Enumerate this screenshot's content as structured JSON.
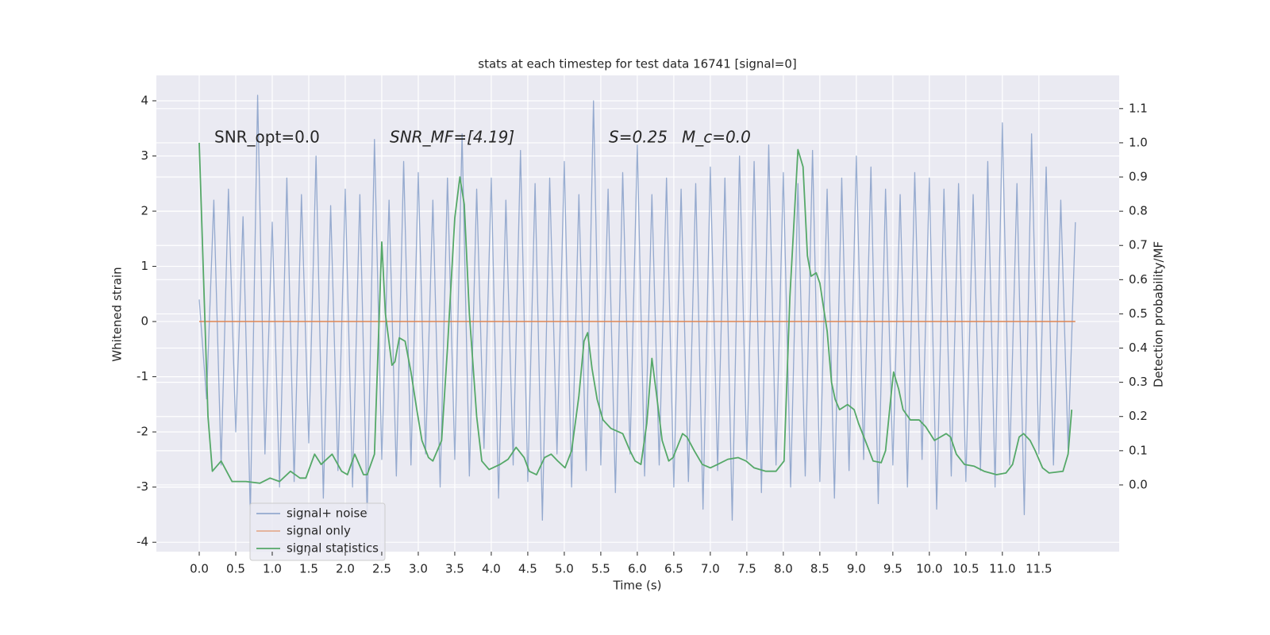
{
  "chart_data": {
    "type": "line",
    "title": "stats at each timestep for test data 16741 [signal=0]",
    "xlabel": "Time (s)",
    "ylabel": "Whitened strain",
    "y2label": "Detection probability/MF",
    "annotations": [
      "SNR_opt=0.0",
      "SNR_MF=[4.19]",
      "S=0.25",
      "M_c=0.0"
    ],
    "xlim": [
      -0.587,
      12.6
    ],
    "ylim": [
      -4.17,
      4.46
    ],
    "y2lim": [
      -0.195,
      1.197
    ],
    "xticks": [
      {
        "value": 0,
        "label": "0.0"
      },
      {
        "value": 0.5,
        "label": "0.5"
      },
      {
        "value": 1,
        "label": "1.0"
      },
      {
        "value": 1.5,
        "label": "1.5"
      },
      {
        "value": 2,
        "label": "2.0"
      },
      {
        "value": 2.5,
        "label": "2.5"
      },
      {
        "value": 3,
        "label": "3.0"
      },
      {
        "value": 3.5,
        "label": "3.5"
      },
      {
        "value": 4,
        "label": "4.0"
      },
      {
        "value": 4.5,
        "label": "4.5"
      },
      {
        "value": 5,
        "label": "5.0"
      },
      {
        "value": 5.5,
        "label": "5.5"
      },
      {
        "value": 6,
        "label": "6.0"
      },
      {
        "value": 6.5,
        "label": "6.5"
      },
      {
        "value": 7,
        "label": "7.0"
      },
      {
        "value": 7.5,
        "label": "7.5"
      },
      {
        "value": 8,
        "label": "8.0"
      },
      {
        "value": 8.5,
        "label": "8.5"
      },
      {
        "value": 9,
        "label": "9.0"
      },
      {
        "value": 9.5,
        "label": "9.5"
      },
      {
        "value": 10,
        "label": "10.0"
      },
      {
        "value": 10.5,
        "label": "10.5"
      },
      {
        "value": 11,
        "label": "11.0"
      },
      {
        "value": 11.5,
        "label": "11.5"
      }
    ],
    "yticks": [
      -4,
      -3,
      -2,
      -1,
      0,
      1,
      2,
      3,
      4
    ],
    "y2ticks": [
      {
        "value": 0,
        "label": "0.0"
      },
      {
        "value": 0.1,
        "label": "0.1"
      },
      {
        "value": 0.2,
        "label": "0.2"
      },
      {
        "value": 0.3,
        "label": "0.3"
      },
      {
        "value": 0.4,
        "label": "0.4"
      },
      {
        "value": 0.5,
        "label": "0.5"
      },
      {
        "value": 0.6,
        "label": "0.6"
      },
      {
        "value": 0.7,
        "label": "0.7"
      },
      {
        "value": 0.8,
        "label": "0.8"
      },
      {
        "value": 0.9,
        "label": "0.9"
      },
      {
        "value": 1,
        "label": "1.0"
      },
      {
        "value": 1.1,
        "label": "1.1"
      }
    ],
    "grid": true,
    "legend": "lower left",
    "series": [
      {
        "name": "signal+ noise",
        "color": "#4c72b0",
        "x": [
          0,
          0.1,
          0.2,
          0.3,
          0.4,
          0.5,
          0.6,
          0.7,
          0.8,
          0.9,
          1,
          1.1,
          1.2,
          1.3,
          1.4,
          1.5,
          1.6,
          1.7,
          1.8,
          1.9,
          2,
          2.1,
          2.2,
          2.3,
          2.4,
          2.5,
          2.6,
          2.7,
          2.8,
          2.9,
          3,
          3.1,
          3.2,
          3.3,
          3.4,
          3.5,
          3.6,
          3.7,
          3.8,
          3.9,
          4,
          4.1,
          4.2,
          4.3,
          4.4,
          4.5,
          4.6,
          4.7,
          4.8,
          4.9,
          5,
          5.1,
          5.2,
          5.3,
          5.4,
          5.5,
          5.6,
          5.7,
          5.8,
          5.9,
          6,
          6.1,
          6.2,
          6.3,
          6.4,
          6.5,
          6.6,
          6.7,
          6.8,
          6.9,
          7,
          7.1,
          7.2,
          7.3,
          7.4,
          7.5,
          7.6,
          7.7,
          7.8,
          7.9,
          8,
          8.1,
          8.2,
          8.3,
          8.4,
          8.5,
          8.6,
          8.7,
          8.8,
          8.9,
          9,
          9.1,
          9.2,
          9.3,
          9.4,
          9.5,
          9.6,
          9.7,
          9.8,
          9.9,
          10,
          10.1,
          10.2,
          10.3,
          10.4,
          10.5,
          10.6,
          10.7,
          10.8,
          10.9,
          11,
          11.1,
          11.2,
          11.3,
          11.4,
          11.5,
          11.6,
          11.7,
          11.8,
          11.9,
          12
        ],
        "values": [
          0.4,
          -1.4,
          2.2,
          -2.6,
          2.4,
          -2.0,
          1.9,
          -3.5,
          4.1,
          -2.4,
          1.8,
          -3.0,
          2.6,
          -2.9,
          2.3,
          -2.2,
          3.0,
          -3.2,
          2.1,
          -2.7,
          2.4,
          -3.0,
          2.3,
          -3.5,
          3.3,
          -2.5,
          2.2,
          -2.8,
          2.9,
          -2.6,
          2.7,
          -2.4,
          2.2,
          -3.0,
          2.6,
          -2.5,
          3.4,
          -2.8,
          2.4,
          -2.3,
          2.6,
          -3.2,
          2.2,
          -2.6,
          3.1,
          -2.9,
          2.5,
          -3.6,
          2.6,
          -2.4,
          2.9,
          -3.0,
          2.3,
          -2.7,
          4.0,
          -2.6,
          2.4,
          -3.1,
          2.7,
          -2.4,
          3.2,
          -2.8,
          2.3,
          -2.6,
          2.6,
          -3.0,
          2.4,
          -2.9,
          2.5,
          -3.4,
          2.8,
          -2.7,
          2.6,
          -3.6,
          3.0,
          -2.5,
          2.9,
          -3.1,
          3.2,
          -2.6,
          2.7,
          -3.0,
          2.5,
          -2.8,
          3.1,
          -2.9,
          2.4,
          -3.2,
          2.6,
          -2.7,
          3.0,
          -2.5,
          2.8,
          -3.3,
          2.4,
          -2.6,
          2.3,
          -3.0,
          2.7,
          -2.5,
          2.6,
          -3.4,
          2.4,
          -2.8,
          2.5,
          -2.9,
          2.3,
          -2.7,
          2.9,
          -3.0,
          3.6,
          -2.6,
          2.5,
          -3.5,
          3.4,
          -2.4,
          2.8,
          -2.6,
          2.2,
          -2.3,
          1.8
        ]
      },
      {
        "name": "signal only",
        "color": "#dd8452",
        "x": [
          0,
          12
        ],
        "values": [
          0,
          0
        ]
      },
      {
        "name": "signal statistics",
        "color": "#55a868",
        "axis": "y2",
        "x": [
          0,
          0.12,
          0.18,
          0.3,
          0.45,
          0.64,
          0.83,
          0.97,
          1.1,
          1.25,
          1.38,
          1.46,
          1.58,
          1.67,
          1.82,
          1.95,
          2.03,
          2.13,
          2.25,
          2.3,
          2.4,
          2.5,
          2.55,
          2.64,
          2.68,
          2.74,
          2.82,
          2.9,
          2.98,
          3.05,
          3.14,
          3.2,
          3.32,
          3.4,
          3.5,
          3.57,
          3.63,
          3.7,
          3.8,
          3.87,
          3.97,
          4.12,
          4.23,
          4.34,
          4.45,
          4.52,
          4.62,
          4.73,
          4.82,
          4.91,
          5.01,
          5.1,
          5.2,
          5.27,
          5.32,
          5.38,
          5.45,
          5.53,
          5.64,
          5.8,
          5.9,
          5.97,
          6.05,
          6.13,
          6.2,
          6.26,
          6.34,
          6.43,
          6.49,
          6.62,
          6.68,
          6.78,
          6.89,
          7,
          7.1,
          7.24,
          7.38,
          7.49,
          7.6,
          7.76,
          7.9,
          8.01,
          8.09,
          8.2,
          8.27,
          8.33,
          8.38,
          8.45,
          8.5,
          8.6,
          8.66,
          8.71,
          8.77,
          8.88,
          8.97,
          9.03,
          9.14,
          9.23,
          9.34,
          9.4,
          9.47,
          9.51,
          9.58,
          9.64,
          9.74,
          9.86,
          9.95,
          10.07,
          10.15,
          10.23,
          10.29,
          10.37,
          10.48,
          10.61,
          10.75,
          10.92,
          11.05,
          11.14,
          11.23,
          11.29,
          11.38,
          11.45,
          11.55,
          11.64,
          11.83,
          11.9,
          11.95
        ],
        "values": [
          1.0,
          0.2,
          0.04,
          0.07,
          0.01,
          0.01,
          0.005,
          0.02,
          0.01,
          0.04,
          0.02,
          0.02,
          0.09,
          0.06,
          0.09,
          0.04,
          0.03,
          0.09,
          0.03,
          0.03,
          0.09,
          0.71,
          0.5,
          0.35,
          0.36,
          0.43,
          0.42,
          0.33,
          0.22,
          0.13,
          0.08,
          0.07,
          0.13,
          0.4,
          0.78,
          0.9,
          0.82,
          0.5,
          0.2,
          0.07,
          0.045,
          0.06,
          0.075,
          0.11,
          0.08,
          0.04,
          0.03,
          0.08,
          0.09,
          0.07,
          0.05,
          0.1,
          0.26,
          0.42,
          0.445,
          0.34,
          0.25,
          0.19,
          0.165,
          0.15,
          0.1,
          0.07,
          0.06,
          0.18,
          0.37,
          0.27,
          0.13,
          0.07,
          0.08,
          0.15,
          0.14,
          0.1,
          0.06,
          0.05,
          0.06,
          0.075,
          0.08,
          0.07,
          0.05,
          0.04,
          0.04,
          0.07,
          0.55,
          0.98,
          0.93,
          0.67,
          0.61,
          0.62,
          0.59,
          0.45,
          0.3,
          0.25,
          0.22,
          0.235,
          0.22,
          0.18,
          0.12,
          0.07,
          0.065,
          0.1,
          0.25,
          0.33,
          0.28,
          0.22,
          0.19,
          0.19,
          0.17,
          0.13,
          0.14,
          0.15,
          0.14,
          0.09,
          0.06,
          0.055,
          0.04,
          0.03,
          0.035,
          0.06,
          0.14,
          0.15,
          0.13,
          0.1,
          0.05,
          0.035,
          0.04,
          0.09,
          0.22
        ]
      }
    ]
  }
}
